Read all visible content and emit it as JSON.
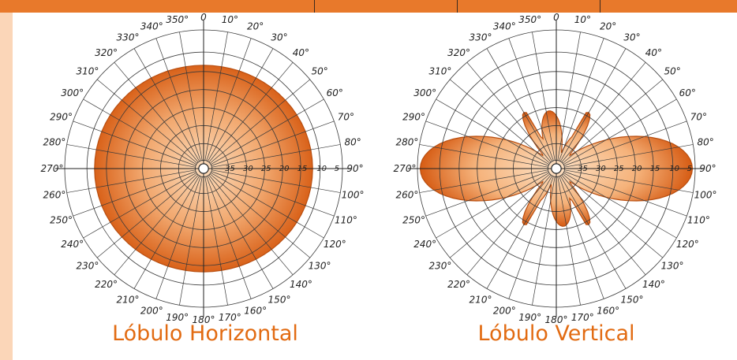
{
  "captions": {
    "horizontal": "Lóbulo Horizontal",
    "vertical": "Lóbulo Vertical"
  },
  "angle_labels": [
    "0",
    "10°",
    "20°",
    "30°",
    "40°",
    "50°",
    "60°",
    "70°",
    "80°",
    "90°",
    "100°",
    "110°",
    "120°",
    "130°",
    "140°",
    "150°",
    "160°",
    "170°",
    "180°",
    "190°",
    "200°",
    "210°",
    "220°",
    "230°",
    "240°",
    "250°",
    "260°",
    "270°",
    "280°",
    "290°",
    "300°",
    "310°",
    "320°",
    "330°",
    "340°",
    "350°"
  ],
  "db_labels": [
    "-35",
    "-30",
    "-25",
    "-20",
    "-15",
    "-10",
    "-5"
  ],
  "colors": {
    "accent_bar": "#e8792b",
    "side_strip": "#fbd6b8",
    "lobe_fill_dark": "#d9621a",
    "lobe_fill_light": "#f7c79c",
    "caption": "#e26b12"
  }
}
